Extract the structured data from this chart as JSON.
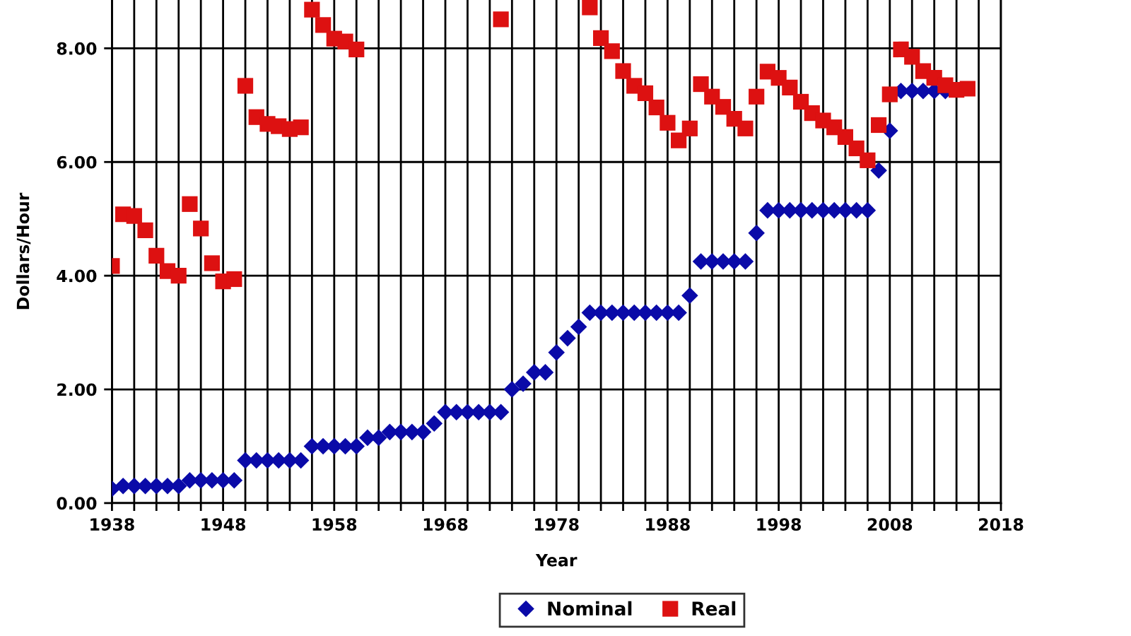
{
  "chart_data": {
    "type": "scatter",
    "xlabel": "Year",
    "ylabel": "Dollars/Hour",
    "x": [
      1938,
      1939,
      1940,
      1941,
      1942,
      1943,
      1944,
      1945,
      1946,
      1947,
      1948,
      1949,
      1950,
      1951,
      1952,
      1953,
      1954,
      1955,
      1956,
      1957,
      1958,
      1959,
      1960,
      1961,
      1962,
      1963,
      1964,
      1965,
      1966,
      1967,
      1968,
      1969,
      1970,
      1971,
      1972,
      1973,
      1974,
      1975,
      1976,
      1977,
      1978,
      1979,
      1980,
      1981,
      1982,
      1983,
      1984,
      1985,
      1986,
      1987,
      1988,
      1989,
      1990,
      1991,
      1992,
      1993,
      1994,
      1995,
      1996,
      1997,
      1998,
      1999,
      2000,
      2001,
      2002,
      2003,
      2004,
      2005,
      2006,
      2007,
      2008,
      2009,
      2010,
      2011,
      2012,
      2013,
      2014,
      2015
    ],
    "series": [
      {
        "name": "Nominal",
        "color": "#0a0aa8",
        "marker": "diamond",
        "values": [
          0.25,
          0.3,
          0.3,
          0.3,
          0.3,
          0.3,
          0.3,
          0.4,
          0.4,
          0.4,
          0.4,
          0.4,
          0.75,
          0.75,
          0.75,
          0.75,
          0.75,
          0.75,
          1.0,
          1.0,
          1.0,
          1.0,
          1.0,
          1.15,
          1.15,
          1.25,
          1.25,
          1.25,
          1.25,
          1.4,
          1.6,
          1.6,
          1.6,
          1.6,
          1.6,
          1.6,
          2.0,
          2.1,
          2.3,
          2.3,
          2.65,
          2.9,
          3.1,
          3.35,
          3.35,
          3.35,
          3.35,
          3.35,
          3.35,
          3.35,
          3.35,
          3.35,
          3.65,
          4.25,
          4.25,
          4.25,
          4.25,
          4.25,
          4.75,
          5.15,
          5.15,
          5.15,
          5.15,
          5.15,
          5.15,
          5.15,
          5.15,
          5.15,
          5.15,
          5.85,
          6.55,
          7.25,
          7.25,
          7.25,
          7.25,
          7.25,
          null,
          null
        ]
      },
      {
        "name": "Real",
        "color": "#dd1111",
        "marker": "square",
        "values": [
          4.17,
          5.08,
          5.05,
          4.8,
          4.35,
          4.08,
          4.0,
          5.26,
          4.83,
          4.22,
          3.9,
          3.94,
          7.34,
          6.79,
          6.67,
          6.63,
          6.58,
          6.61,
          8.68,
          8.41,
          8.17,
          8.12,
          7.98,
          null,
          null,
          null,
          null,
          null,
          null,
          null,
          null,
          null,
          null,
          null,
          null,
          8.51,
          null,
          null,
          null,
          null,
          null,
          null,
          null,
          8.72,
          8.18,
          7.95,
          7.6,
          7.34,
          7.21,
          6.96,
          6.69,
          6.38,
          6.59,
          7.37,
          7.15,
          6.97,
          6.76,
          6.59,
          7.15,
          7.59,
          7.48,
          7.31,
          7.06,
          6.86,
          6.73,
          6.61,
          6.44,
          6.24,
          6.03,
          6.65,
          7.19,
          7.98,
          7.85,
          7.6,
          7.48,
          7.35,
          7.27,
          7.29
        ]
      }
    ],
    "xlim": [
      1938,
      2018
    ],
    "xticks": [
      1938,
      {
        "value": 1940,
        "label": null
      },
      {
        "value": 1942,
        "label": null
      },
      {
        "value": 1944,
        "label": null
      },
      {
        "value": 1946,
        "label": null
      },
      1948,
      {
        "value": 1950,
        "label": null
      },
      {
        "value": 1952,
        "label": null
      },
      {
        "value": 1954,
        "label": null
      },
      {
        "value": 1956,
        "label": null
      },
      1958,
      {
        "value": 1960,
        "label": null
      },
      {
        "value": 1962,
        "label": null
      },
      {
        "value": 1964,
        "label": null
      },
      {
        "value": 1966,
        "label": null
      },
      1968,
      {
        "value": 1970,
        "label": null
      },
      {
        "value": 1972,
        "label": null
      },
      {
        "value": 1974,
        "label": null
      },
      {
        "value": 1976,
        "label": null
      },
      1978,
      {
        "value": 1980,
        "label": null
      },
      {
        "value": 1982,
        "label": null
      },
      {
        "value": 1984,
        "label": null
      },
      {
        "value": 1986,
        "label": null
      },
      1988,
      {
        "value": 1990,
        "label": null
      },
      {
        "value": 1992,
        "label": null
      },
      {
        "value": 1994,
        "label": null
      },
      {
        "value": 1996,
        "label": null
      },
      1998,
      {
        "value": 2000,
        "label": null
      },
      {
        "value": 2002,
        "label": null
      },
      {
        "value": 2004,
        "label": null
      },
      {
        "value": 2006,
        "label": null
      },
      2008,
      {
        "value": 2010,
        "label": null
      },
      {
        "value": 2012,
        "label": null
      },
      {
        "value": 2014,
        "label": null
      },
      {
        "value": 2016,
        "label": null
      },
      2018
    ],
    "ylim": [
      0,
      8.85
    ],
    "yticks": [
      {
        "value": 0,
        "label": "0.00"
      },
      {
        "value": 2,
        "label": "2.00"
      },
      {
        "value": 4,
        "label": "4.00"
      },
      {
        "value": 6,
        "label": "6.00"
      },
      {
        "value": 8,
        "label": "8.00"
      }
    ],
    "grid": true,
    "legend": "bottom"
  }
}
